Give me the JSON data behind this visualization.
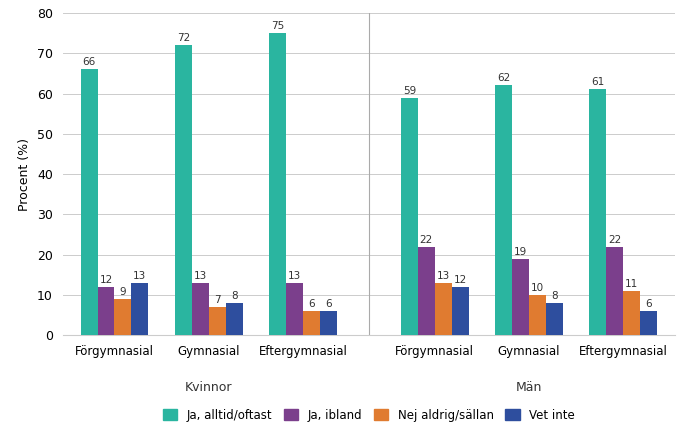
{
  "group_labels_bottom": [
    "Förgymnasial",
    "Gymnasial",
    "Eftergymnasial",
    "Förgymnasial",
    "Gymnasial",
    "Eftergymnasial"
  ],
  "series": {
    "Ja, alltid/oftast": [
      66,
      72,
      75,
      59,
      62,
      61
    ],
    "Ja, ibland": [
      12,
      13,
      13,
      22,
      19,
      22
    ],
    "Nej aldrig/sällan": [
      9,
      7,
      6,
      13,
      10,
      11
    ],
    "Vet inte": [
      13,
      8,
      6,
      12,
      8,
      6
    ]
  },
  "colors": {
    "Ja, alltid/oftast": "#2ab5a0",
    "Ja, ibland": "#7b3f8c",
    "Nej aldrig/sällan": "#e07b30",
    "Vet inte": "#2e4e9e"
  },
  "ylabel": "Procent (%)",
  "ylim": [
    0,
    80
  ],
  "yticks": [
    0,
    10,
    20,
    30,
    40,
    50,
    60,
    70,
    80
  ],
  "bar_width": 0.18,
  "figsize": [
    6.96,
    4.3
  ],
  "dpi": 100,
  "background_color": "#ffffff",
  "grid_color": "#cccccc",
  "legend_labels": [
    "Ja, alltid/oftast",
    "Ja, ibland",
    "Nej aldrig/sällan",
    "Vet inte"
  ],
  "section_label_kvinnor": "Kvinnor",
  "section_label_man": "Män"
}
